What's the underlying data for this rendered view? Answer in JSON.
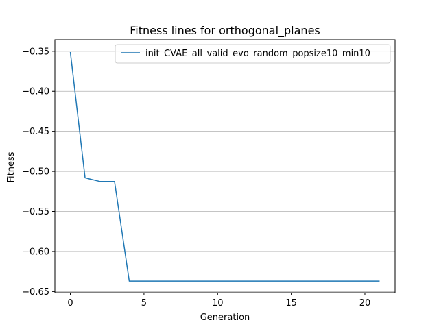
{
  "chart_data": {
    "type": "line",
    "title": "Fitness lines for orthogonal_planes",
    "xlabel": "Generation",
    "ylabel": "Fitness",
    "xlim": [
      -1.05,
      22.05
    ],
    "ylim": [
      -0.6514,
      -0.3356
    ],
    "x_ticks": [
      0,
      5,
      10,
      15,
      20
    ],
    "x_tick_labels": [
      "0",
      "5",
      "10",
      "15",
      "20"
    ],
    "y_ticks": [
      -0.35,
      -0.4,
      -0.45,
      -0.5,
      -0.55,
      -0.6,
      -0.65
    ],
    "y_tick_labels": [
      "−0.35",
      "−0.40",
      "−0.45",
      "−0.50",
      "−0.55",
      "−0.60",
      "−0.65"
    ],
    "grid": "horizontal",
    "legend_position": "upper right",
    "series": [
      {
        "name": "init_CVAE_all_valid_evo_random_popsize10_min10",
        "color": "#1f77b4",
        "x": [
          0,
          1,
          2,
          3,
          4,
          5,
          6,
          7,
          8,
          9,
          10,
          11,
          12,
          13,
          14,
          15,
          16,
          17,
          18,
          19,
          20,
          21
        ],
        "y": [
          -0.351,
          -0.508,
          -0.5125,
          -0.5125,
          -0.637,
          -0.637,
          -0.637,
          -0.637,
          -0.637,
          -0.637,
          -0.637,
          -0.637,
          -0.637,
          -0.637,
          -0.637,
          -0.637,
          -0.637,
          -0.637,
          -0.637,
          -0.637,
          -0.637,
          -0.637
        ]
      }
    ]
  }
}
